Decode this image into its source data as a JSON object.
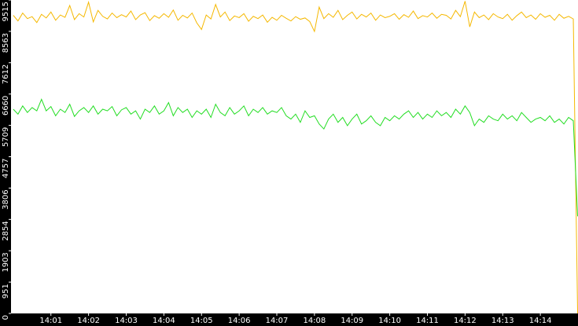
{
  "chart_data": {
    "type": "line",
    "x": [
      840,
      840.125,
      840.25,
      840.375,
      840.5,
      840.625,
      840.75,
      840.875,
      841,
      841.125,
      841.25,
      841.375,
      841.5,
      841.625,
      841.75,
      841.875,
      842,
      842.125,
      842.25,
      842.375,
      842.5,
      842.625,
      842.75,
      842.875,
      843,
      843.125,
      843.25,
      843.375,
      843.5,
      843.625,
      843.75,
      843.875,
      844,
      844.125,
      844.25,
      844.375,
      844.5,
      844.625,
      844.75,
      844.875,
      845,
      845.125,
      845.25,
      845.375,
      845.5,
      845.625,
      845.75,
      845.875,
      846,
      846.125,
      846.25,
      846.375,
      846.5,
      846.625,
      846.75,
      846.875,
      847,
      847.125,
      847.25,
      847.375,
      847.5,
      847.625,
      847.75,
      847.875,
      848,
      848.125,
      848.25,
      848.375,
      848.5,
      848.625,
      848.75,
      848.875,
      849,
      849.125,
      849.25,
      849.375,
      849.5,
      849.625,
      849.75,
      849.875,
      850,
      850.125,
      850.25,
      850.375,
      850.5,
      850.625,
      850.75,
      850.875,
      851,
      851.125,
      851.25,
      851.375,
      851.5,
      851.625,
      851.75,
      851.875,
      852,
      852.125,
      852.25,
      852.375,
      852.5,
      852.625,
      852.75,
      852.875,
      853,
      853.125,
      853.25,
      853.375,
      853.5,
      853.625,
      853.75,
      853.875,
      854,
      854.125,
      854.25,
      854.375,
      854.5,
      854.625,
      854.75,
      854.875,
      854.99
    ],
    "series": [
      {
        "color": "#f5b800",
        "values": [
          9050,
          8880,
          9120,
          8950,
          9010,
          8830,
          9080,
          8970,
          9150,
          8900,
          9060,
          8990,
          9350,
          8920,
          9100,
          9000,
          9450,
          8850,
          9200,
          9020,
          8940,
          9120,
          8980,
          9070,
          9000,
          9180,
          8920,
          9060,
          9130,
          8890,
          9040,
          8960,
          9100,
          8990,
          9210,
          8900,
          9050,
          8970,
          9120,
          8820,
          8620,
          9060,
          8940,
          9380,
          9000,
          9150,
          8890,
          9030,
          8980,
          9100,
          8870,
          9020,
          8950,
          9060,
          8840,
          8990,
          8900,
          9050,
          8960,
          8880,
          9010,
          8930,
          8970,
          8860,
          8560,
          9300,
          8950,
          9100,
          8990,
          9200,
          8920,
          9050,
          9150,
          8940,
          9080,
          9000,
          9120,
          8900,
          9060,
          8980,
          9020,
          9100,
          8930,
          9070,
          8990,
          9180,
          8950,
          9040,
          9000,
          9120,
          8960,
          9080,
          9050,
          8940,
          9200,
          9010,
          9480,
          8700,
          9150,
          8980,
          9060,
          8920,
          9100,
          9000,
          8950,
          9080,
          8900,
          9040,
          9150,
          8980,
          9060,
          8930,
          9100,
          8990,
          9050,
          8900,
          9080,
          8960,
          9020,
          8940,
          0
        ]
      },
      {
        "color": "#22dd22",
        "values": [
          6200,
          6050,
          6300,
          6100,
          6250,
          6150,
          6500,
          6150,
          6280,
          6000,
          6200,
          6100,
          6350,
          5980,
          6150,
          6250,
          6100,
          6300,
          6050,
          6200,
          6150,
          6280,
          6000,
          6180,
          6250,
          6050,
          6150,
          5900,
          6200,
          6100,
          6300,
          6050,
          6150,
          6400,
          6000,
          6250,
          6100,
          6200,
          5950,
          6150,
          6050,
          6200,
          5950,
          6350,
          6100,
          6000,
          6250,
          6050,
          6150,
          6300,
          6000,
          6200,
          6100,
          6250,
          6050,
          6150,
          6100,
          6250,
          6000,
          5900,
          6050,
          5800,
          6150,
          5950,
          6000,
          5750,
          5600,
          5900,
          6050,
          5800,
          5950,
          5700,
          5900,
          6050,
          5750,
          5850,
          6000,
          5800,
          5700,
          5950,
          5850,
          6000,
          5900,
          6050,
          6150,
          5950,
          6100,
          5900,
          6050,
          5950,
          6150,
          6000,
          6100,
          5950,
          6200,
          6050,
          6300,
          6100,
          5700,
          5900,
          5800,
          6000,
          5900,
          5850,
          6050,
          5900,
          6000,
          5850,
          6100,
          5950,
          5800,
          5900,
          5950,
          5850,
          6000,
          5800,
          5900,
          5750,
          5950,
          5850,
          2950
        ]
      }
    ],
    "xlim": [
      839.94,
      855
    ],
    "xticks": [
      {
        "value": 841,
        "label": "14:01"
      },
      {
        "value": 842,
        "label": "14:02"
      },
      {
        "value": 843,
        "label": "14:03"
      },
      {
        "value": 844,
        "label": "14:04"
      },
      {
        "value": 845,
        "label": "14:05"
      },
      {
        "value": 846,
        "label": "14:06"
      },
      {
        "value": 847,
        "label": "14:07"
      },
      {
        "value": 848,
        "label": "14:08"
      },
      {
        "value": 849,
        "label": "14:09"
      },
      {
        "value": 850,
        "label": "14:10"
      },
      {
        "value": 851,
        "label": "14:11"
      },
      {
        "value": 852,
        "label": "14:12"
      },
      {
        "value": 853,
        "label": "14:13"
      },
      {
        "value": 854,
        "label": "14:14"
      }
    ],
    "ylim": [
      0,
      9515
    ],
    "yticks": [
      0,
      951,
      1903,
      2854,
      3806,
      4757,
      5709,
      6660,
      7612,
      8563,
      9515
    ]
  }
}
